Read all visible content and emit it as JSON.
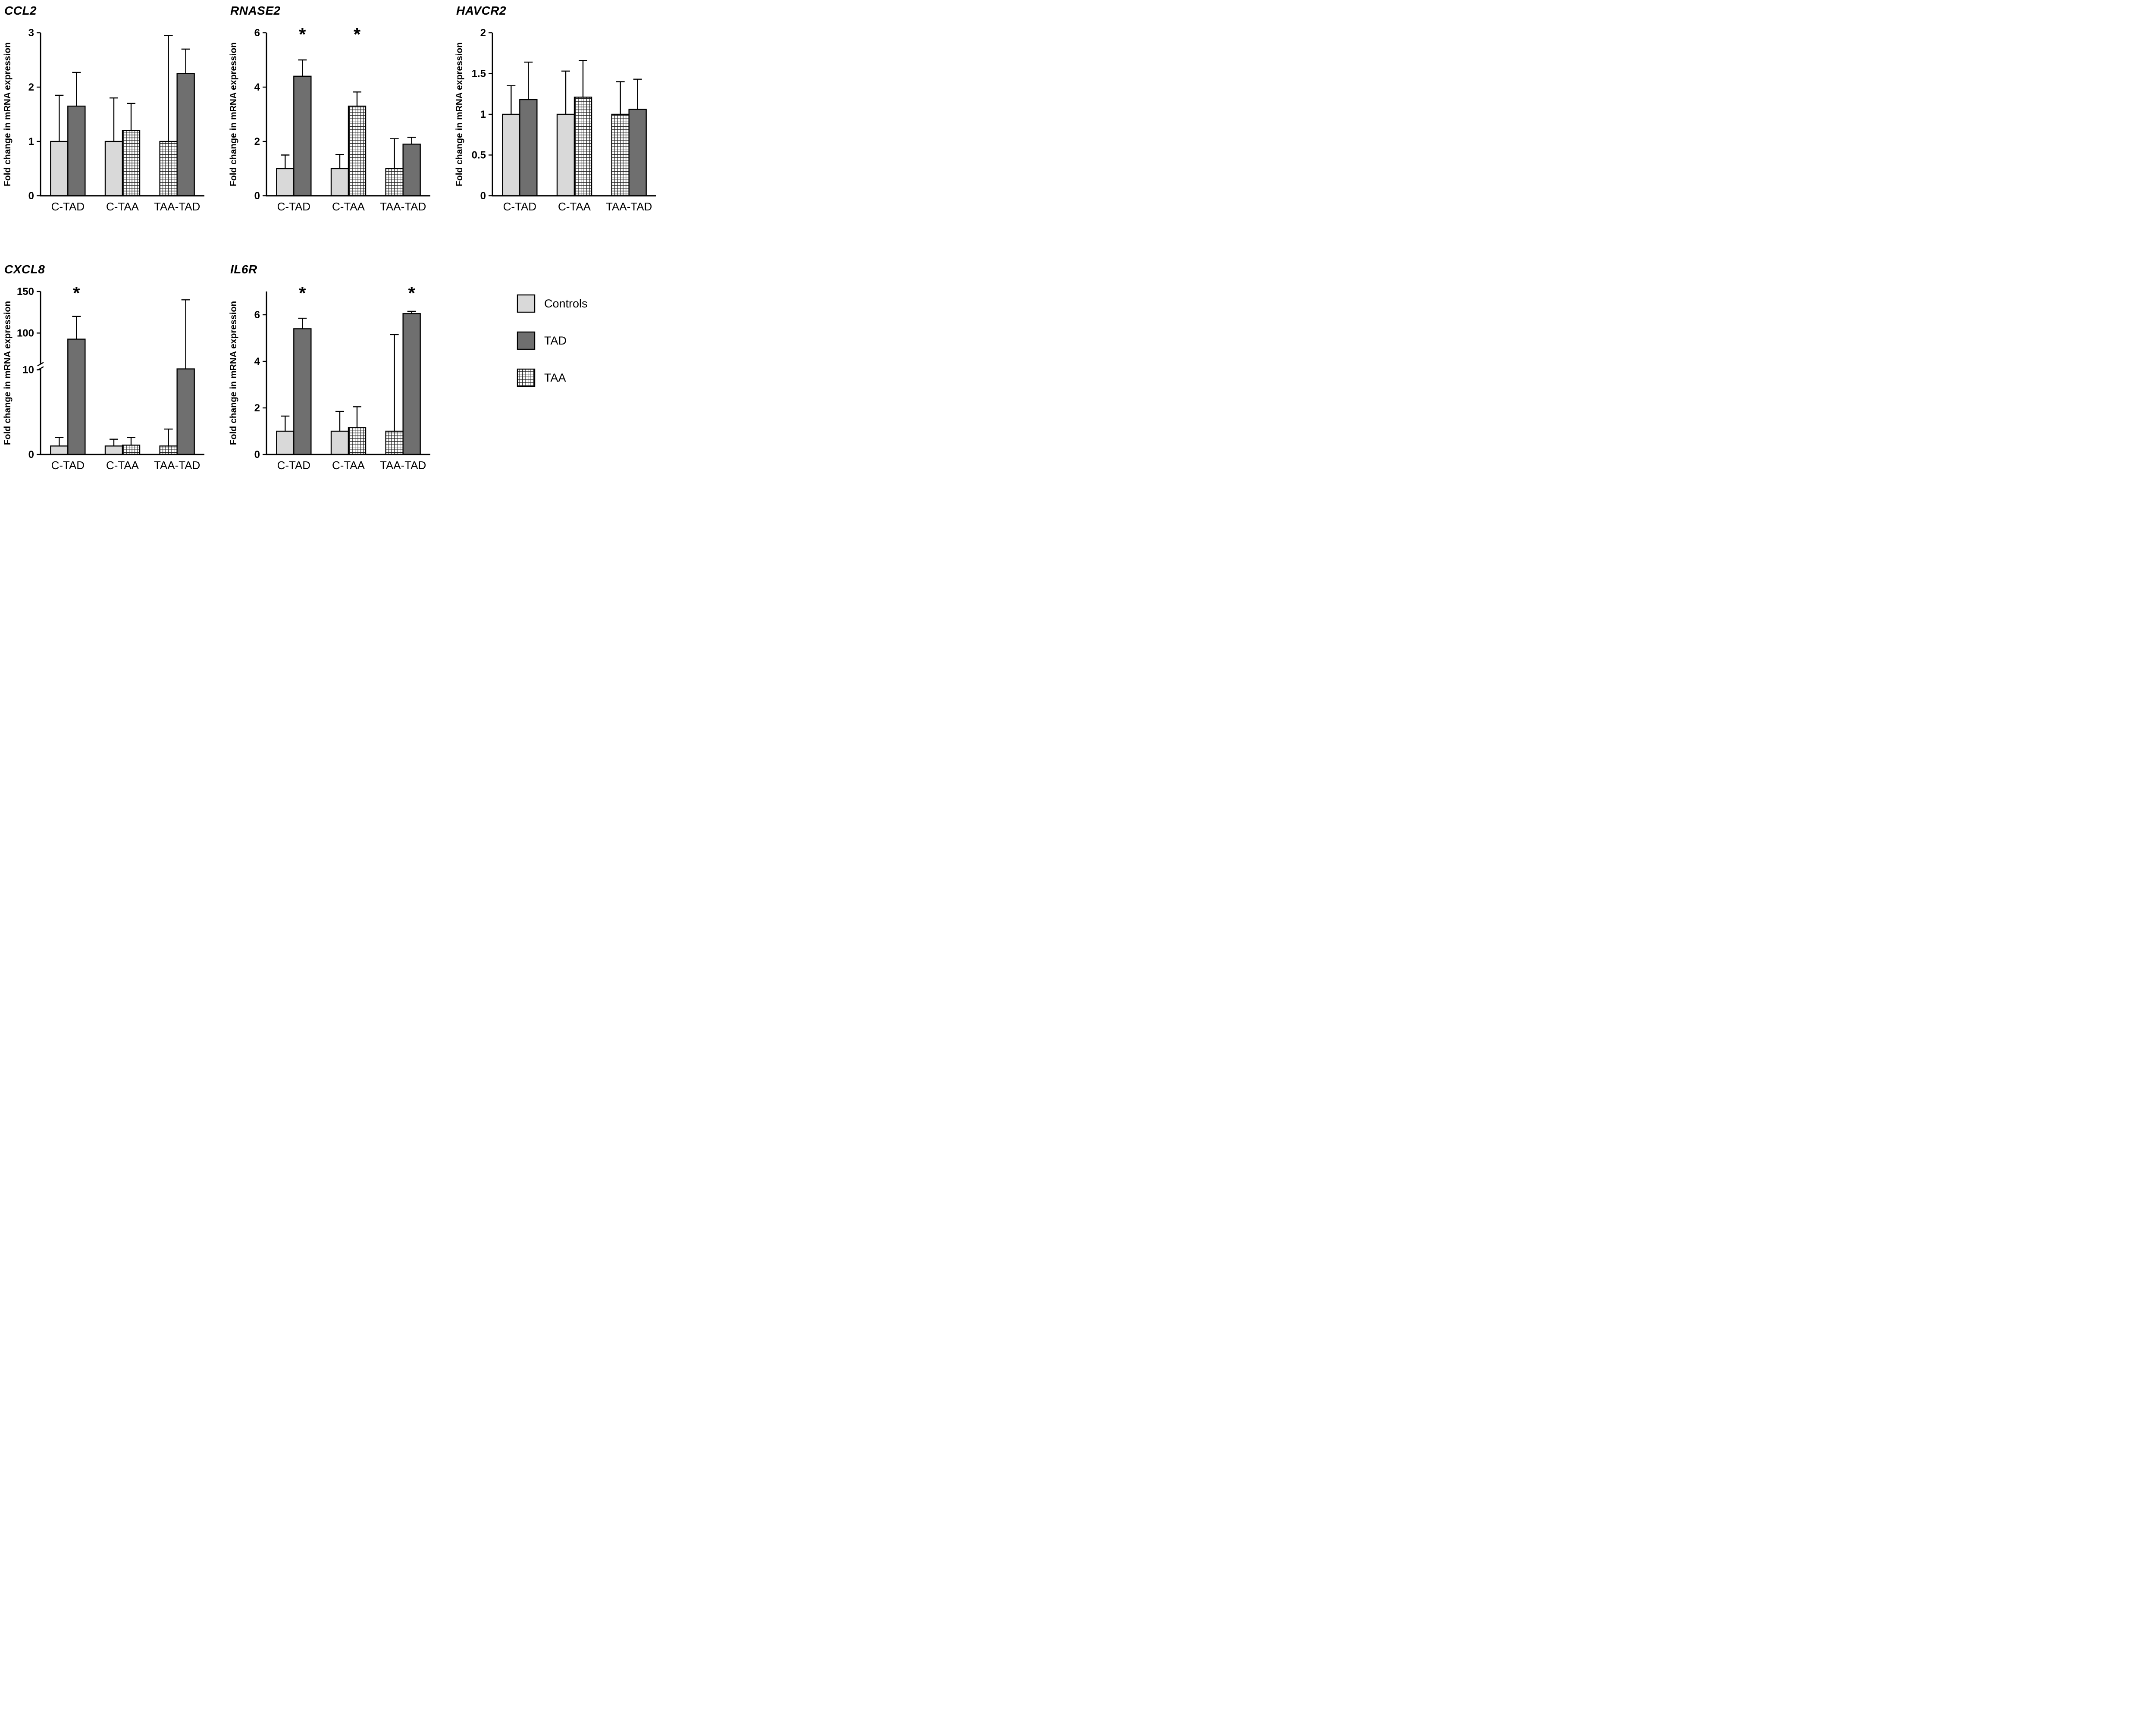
{
  "colors": {
    "controls": "#d9d9d9",
    "tad": "#6f6f6f",
    "taa_fill": "#ffffff",
    "bar_stroke": "#000000",
    "pattern_line": "#1a1a1a"
  },
  "legend": {
    "position": "bottom-right",
    "items": [
      {
        "label": "Controls",
        "style": "controls"
      },
      {
        "label": "TAD",
        "style": "tad"
      },
      {
        "label": "TAA",
        "style": "taa"
      }
    ]
  },
  "chart_data": [
    {
      "type": "bar",
      "id": "ccl2",
      "title": "CCL2",
      "ylabel": "Fold change in mRNA expression",
      "ylim": [
        0,
        3
      ],
      "yticks": [
        0,
        1,
        2,
        3
      ],
      "scale_anchors": [
        [
          0,
          0
        ],
        [
          3,
          1
        ]
      ],
      "categories": [
        "C-TAD",
        "C-TAA",
        "TAA-TAD"
      ],
      "groups": [
        {
          "category": "C-TAD",
          "bars": [
            {
              "series": "Controls",
              "style": "controls",
              "value": 1.0,
              "err": 0.85,
              "sig": null
            },
            {
              "series": "TAD",
              "style": "tad",
              "value": 1.65,
              "err": 0.62,
              "sig": null
            }
          ]
        },
        {
          "category": "C-TAA",
          "bars": [
            {
              "series": "Controls",
              "style": "controls",
              "value": 1.0,
              "err": 0.8,
              "sig": null
            },
            {
              "series": "TAA",
              "style": "taa",
              "value": 1.2,
              "err": 0.5,
              "sig": null
            }
          ]
        },
        {
          "category": "TAA-TAD",
          "bars": [
            {
              "series": "TAA",
              "style": "taa",
              "value": 1.0,
              "err": 1.95,
              "sig": null
            },
            {
              "series": "TAD",
              "style": "tad",
              "value": 2.25,
              "err": 0.45,
              "sig": null
            }
          ]
        }
      ]
    },
    {
      "type": "bar",
      "id": "rnase2",
      "title": "RNASE2",
      "ylabel": "Fold change in mRNA expression",
      "ylim": [
        0,
        6
      ],
      "yticks": [
        0,
        2,
        4,
        6
      ],
      "scale_anchors": [
        [
          0,
          0
        ],
        [
          6,
          1
        ]
      ],
      "categories": [
        "C-TAD",
        "C-TAA",
        "TAA-TAD"
      ],
      "groups": [
        {
          "category": "C-TAD",
          "bars": [
            {
              "series": "Controls",
              "style": "controls",
              "value": 1.0,
              "err": 0.5,
              "sig": null
            },
            {
              "series": "TAD",
              "style": "tad",
              "value": 4.4,
              "err": 0.6,
              "sig": "*"
            }
          ]
        },
        {
          "category": "C-TAA",
          "bars": [
            {
              "series": "Controls",
              "style": "controls",
              "value": 1.0,
              "err": 0.52,
              "sig": null
            },
            {
              "series": "TAA",
              "style": "taa",
              "value": 3.3,
              "err": 0.52,
              "sig": "*"
            }
          ]
        },
        {
          "category": "TAA-TAD",
          "bars": [
            {
              "series": "TAA",
              "style": "taa",
              "value": 1.0,
              "err": 1.1,
              "sig": null
            },
            {
              "series": "TAD",
              "style": "tad",
              "value": 1.9,
              "err": 0.25,
              "sig": null
            }
          ]
        }
      ]
    },
    {
      "type": "bar",
      "id": "havcr2",
      "title": "HAVCR2",
      "ylabel": "Fold change in mRNA expression",
      "ylim": [
        0,
        2
      ],
      "yticks": [
        0,
        0.5,
        1,
        1.5,
        2
      ],
      "scale_anchors": [
        [
          0,
          0
        ],
        [
          2,
          1
        ]
      ],
      "categories": [
        "C-TAD",
        "C-TAA",
        "TAA-TAD"
      ],
      "groups": [
        {
          "category": "C-TAD",
          "bars": [
            {
              "series": "Controls",
              "style": "controls",
              "value": 1.0,
              "err": 0.35,
              "sig": null
            },
            {
              "series": "TAD",
              "style": "tad",
              "value": 1.18,
              "err": 0.46,
              "sig": null
            }
          ]
        },
        {
          "category": "C-TAA",
          "bars": [
            {
              "series": "Controls",
              "style": "controls",
              "value": 1.0,
              "err": 0.53,
              "sig": null
            },
            {
              "series": "TAA",
              "style": "taa",
              "value": 1.21,
              "err": 0.45,
              "sig": null
            }
          ]
        },
        {
          "category": "TAA-TAD",
          "bars": [
            {
              "series": "TAA",
              "style": "taa",
              "value": 1.0,
              "err": 0.4,
              "sig": null
            },
            {
              "series": "TAD",
              "style": "tad",
              "value": 1.06,
              "err": 0.37,
              "sig": null
            }
          ]
        }
      ]
    },
    {
      "type": "bar",
      "id": "cxcl8",
      "title": "CXCL8",
      "ylabel": "Fold change in mRNA expression",
      "ylim": [
        0,
        150
      ],
      "yticks": [
        0,
        10,
        100,
        150
      ],
      "axis_break": {
        "at": 10
      },
      "scale_anchors": [
        [
          0,
          0
        ],
        [
          10,
          0.52
        ],
        [
          100,
          0.745
        ],
        [
          150,
          1.0
        ]
      ],
      "categories": [
        "C-TAD",
        "C-TAA",
        "TAA-TAD"
      ],
      "groups": [
        {
          "category": "C-TAD",
          "bars": [
            {
              "series": "Controls",
              "style": "controls",
              "value": 1.0,
              "err": 1.0,
              "sig": null
            },
            {
              "series": "TAD",
              "style": "tad",
              "value": 85,
              "err": 35,
              "sig": "*"
            }
          ]
        },
        {
          "category": "C-TAA",
          "bars": [
            {
              "series": "Controls",
              "style": "controls",
              "value": 1.0,
              "err": 0.8,
              "sig": null
            },
            {
              "series": "TAA",
              "style": "taa",
              "value": 1.1,
              "err": 0.9,
              "sig": null
            }
          ]
        },
        {
          "category": "TAA-TAD",
          "bars": [
            {
              "series": "TAA",
              "style": "taa",
              "value": 1.0,
              "err": 2.0,
              "sig": null
            },
            {
              "series": "TAD",
              "style": "tad",
              "value": 12,
              "err": 128,
              "sig": null
            }
          ]
        }
      ]
    },
    {
      "type": "bar",
      "id": "il6r",
      "title": "IL6R",
      "ylabel": "Fold change in mRNA expression",
      "ylim": [
        0,
        7
      ],
      "yticks": [
        0,
        2,
        4,
        6
      ],
      "scale_anchors": [
        [
          0,
          0
        ],
        [
          7,
          1
        ]
      ],
      "categories": [
        "C-TAD",
        "C-TAA",
        "TAA-TAD"
      ],
      "groups": [
        {
          "category": "C-TAD",
          "bars": [
            {
              "series": "Controls",
              "style": "controls",
              "value": 1.0,
              "err": 0.65,
              "sig": null
            },
            {
              "series": "TAD",
              "style": "tad",
              "value": 5.4,
              "err": 0.45,
              "sig": "*"
            }
          ]
        },
        {
          "category": "C-TAA",
          "bars": [
            {
              "series": "Controls",
              "style": "controls",
              "value": 1.0,
              "err": 0.85,
              "sig": null
            },
            {
              "series": "TAA",
              "style": "taa",
              "value": 1.15,
              "err": 0.9,
              "sig": null
            }
          ]
        },
        {
          "category": "TAA-TAD",
          "bars": [
            {
              "series": "TAA",
              "style": "taa",
              "value": 1.0,
              "err": 4.15,
              "sig": null
            },
            {
              "series": "TAD",
              "style": "tad",
              "value": 6.05,
              "err": 0.1,
              "sig": "*"
            }
          ]
        }
      ]
    }
  ]
}
